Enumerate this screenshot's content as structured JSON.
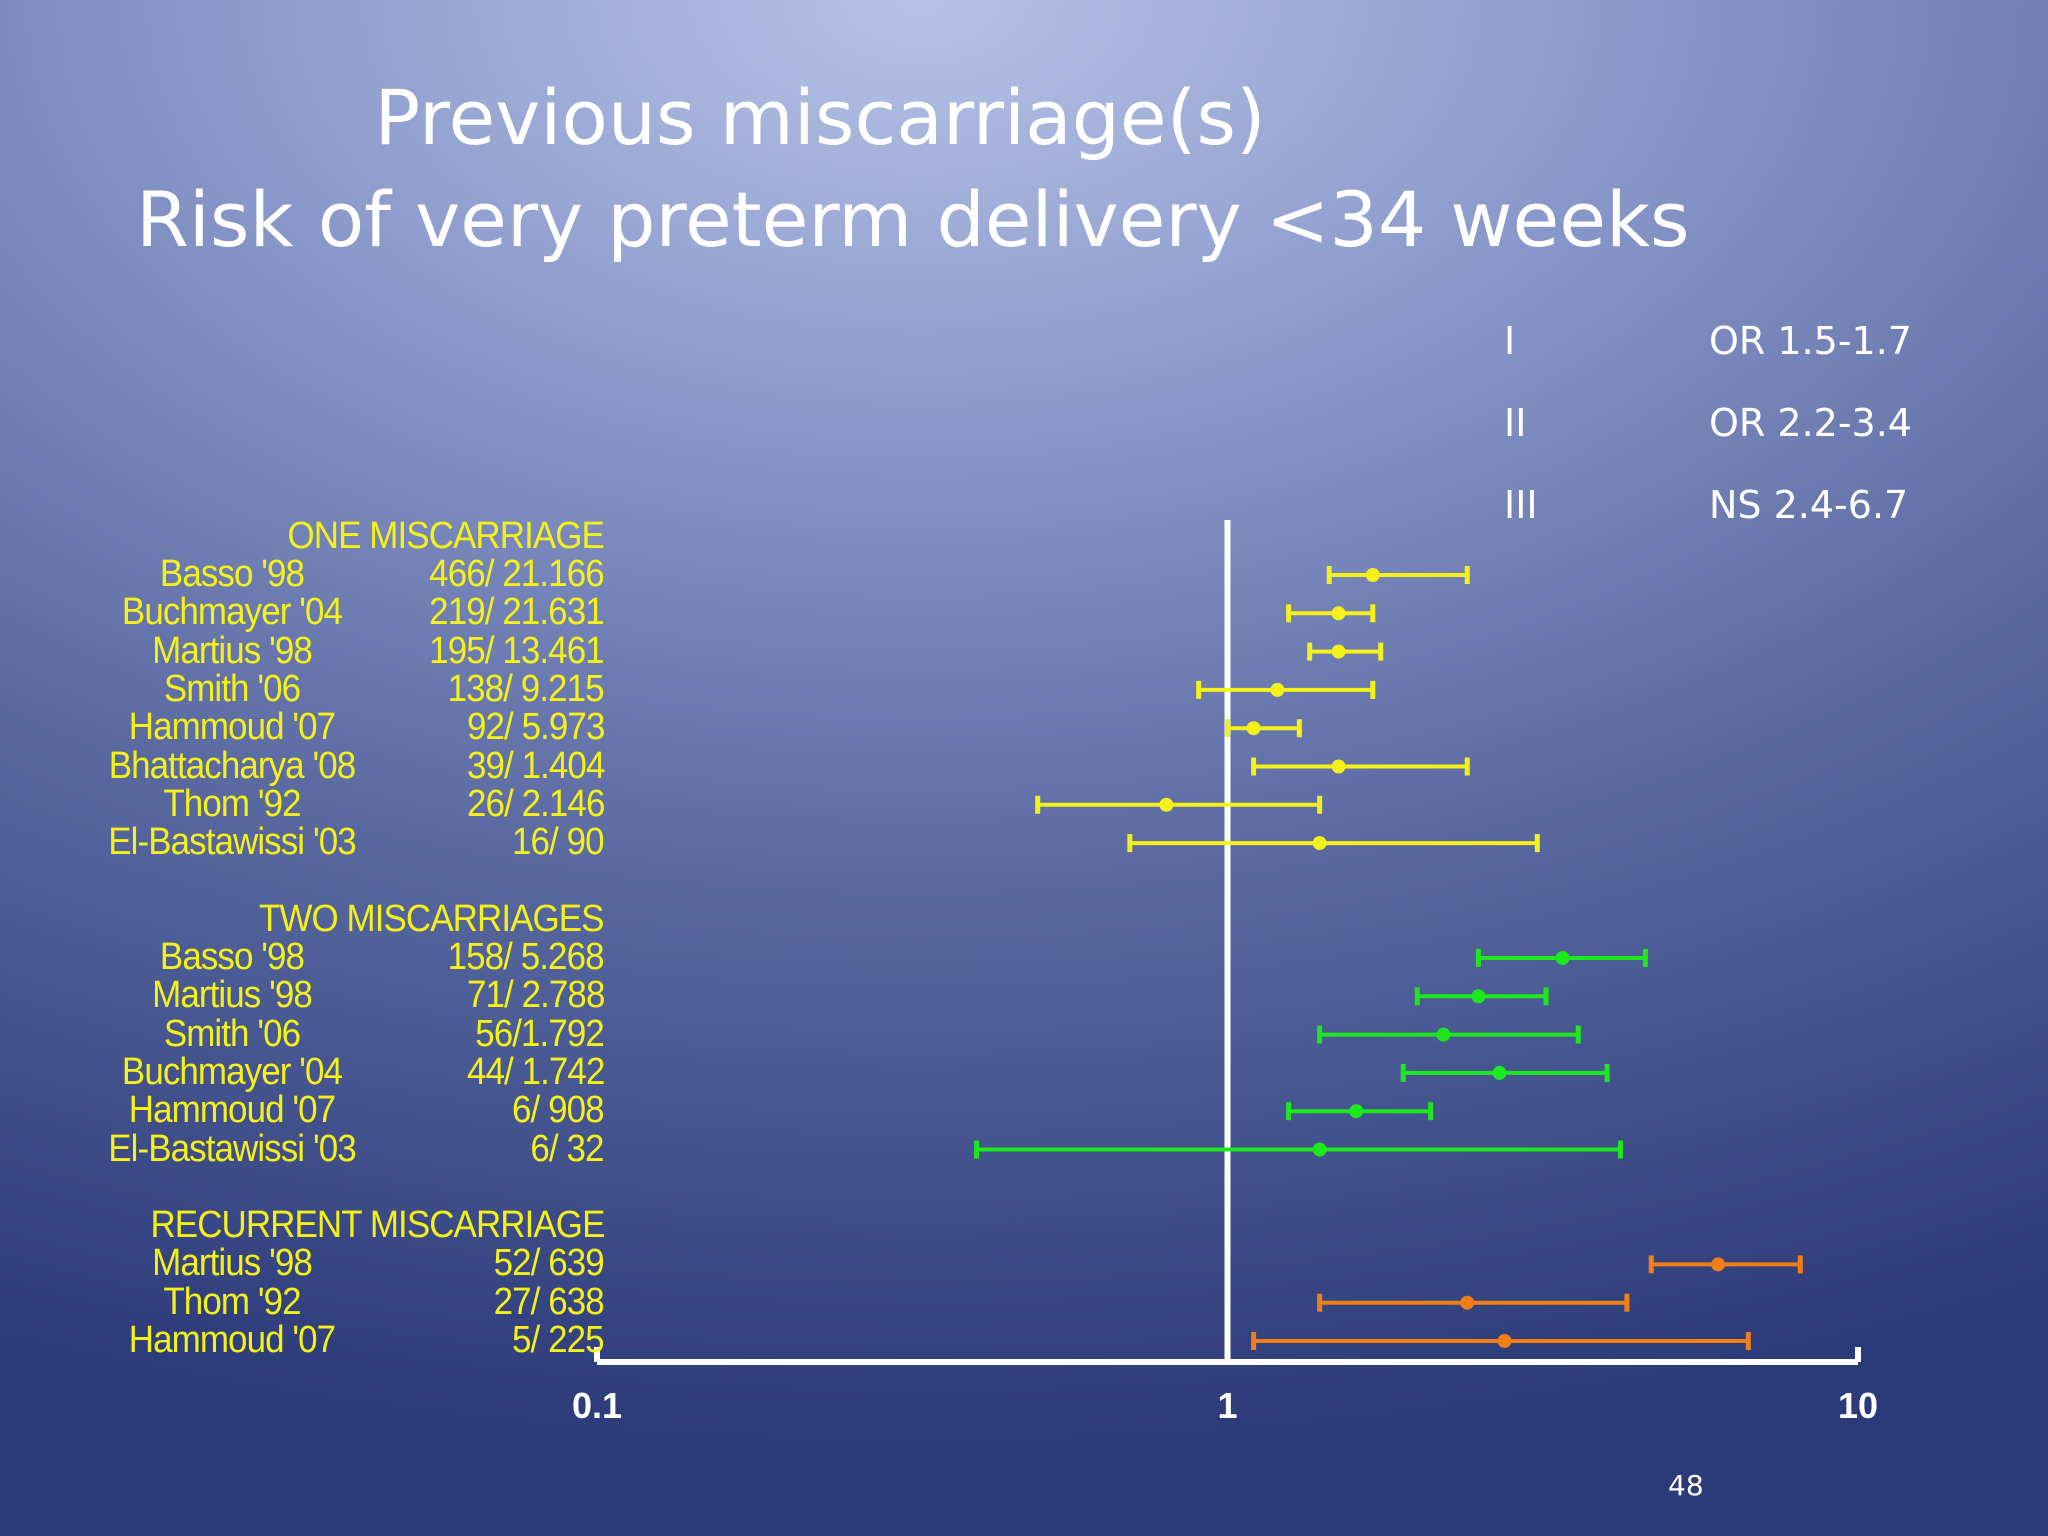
{
  "slide": {
    "title_line1": "Previous miscarriage(s)",
    "title_line2": "Risk of very preterm delivery <34 weeks",
    "page_number": "48"
  },
  "legend": [
    {
      "key": "I",
      "value": "OR 1.5-1.7"
    },
    {
      "key": "II",
      "value": "OR 2.2-3.4"
    },
    {
      "key": "III",
      "value": "NS 2.4-6.7"
    }
  ],
  "chart_data": {
    "type": "forest",
    "x_scale": "log",
    "xlim": [
      0.1,
      10
    ],
    "x_ticks": [
      "0.1",
      "1",
      "10"
    ],
    "reference_line": 1,
    "groups": [
      {
        "name": "ONE MISCARRIAGE",
        "color": "#f4f01a",
        "studies": [
          {
            "study": "Basso '98",
            "n": "466/ 21.166",
            "or": 1.7,
            "lo": 1.45,
            "hi": 2.4
          },
          {
            "study": "Buchmayer '04",
            "n": "219/ 21.631",
            "or": 1.5,
            "lo": 1.25,
            "hi": 1.7
          },
          {
            "study": "Martius '98",
            "n": "195/ 13.461",
            "or": 1.5,
            "lo": 1.35,
            "hi": 1.75
          },
          {
            "study": "Smith '06",
            "n": "138/ 9.215",
            "or": 1.2,
            "lo": 0.9,
            "hi": 1.7
          },
          {
            "study": "Hammoud '07",
            "n": "92/ 5.973",
            "or": 1.1,
            "lo": 1.0,
            "hi": 1.3
          },
          {
            "study": "Bhattacharya '08",
            "n": "39/ 1.404",
            "or": 1.5,
            "lo": 1.1,
            "hi": 2.4
          },
          {
            "study": "Thom '92",
            "n": "26/ 2.146",
            "or": 0.8,
            "lo": 0.5,
            "hi": 1.4
          },
          {
            "study": "El-Bastawissi '03",
            "n": "16/ 90",
            "or": 1.4,
            "lo": 0.7,
            "hi": 3.1
          }
        ]
      },
      {
        "name": "TWO MISCARRIAGES",
        "color": "#1de81d",
        "studies": [
          {
            "study": "Basso '98",
            "n": "158/ 5.268",
            "or": 3.4,
            "lo": 2.5,
            "hi": 4.6
          },
          {
            "study": "Martius '98",
            "n": "71/ 2.788",
            "or": 2.5,
            "lo": 2.0,
            "hi": 3.2
          },
          {
            "study": "Smith '06",
            "n": "56/1.792",
            "or": 2.2,
            "lo": 1.4,
            "hi": 3.6
          },
          {
            "study": "Buchmayer '04",
            "n": "44/ 1.742",
            "or": 2.7,
            "lo": 1.9,
            "hi": 4.0
          },
          {
            "study": "Hammoud '07",
            "n": "6/ 908",
            "or": 1.6,
            "lo": 1.25,
            "hi": 2.1
          },
          {
            "study": "El-Bastawissi '03",
            "n": "6/ 32",
            "or": 1.4,
            "lo": 0.4,
            "hi": 4.2
          }
        ]
      },
      {
        "name": "RECURRENT MISCARRIAGE",
        "color": "#f07f18",
        "studies": [
          {
            "study": "Martius '98",
            "n": "52/ 639",
            "or": 6.0,
            "lo": 4.7,
            "hi": 8.1
          },
          {
            "study": "Thom '92",
            "n": "27/ 638",
            "or": 2.4,
            "lo": 1.4,
            "hi": 4.3
          },
          {
            "study": "Hammoud '07",
            "n": "5/ 225",
            "or": 2.75,
            "lo": 1.1,
            "hi": 6.7
          }
        ]
      }
    ]
  }
}
